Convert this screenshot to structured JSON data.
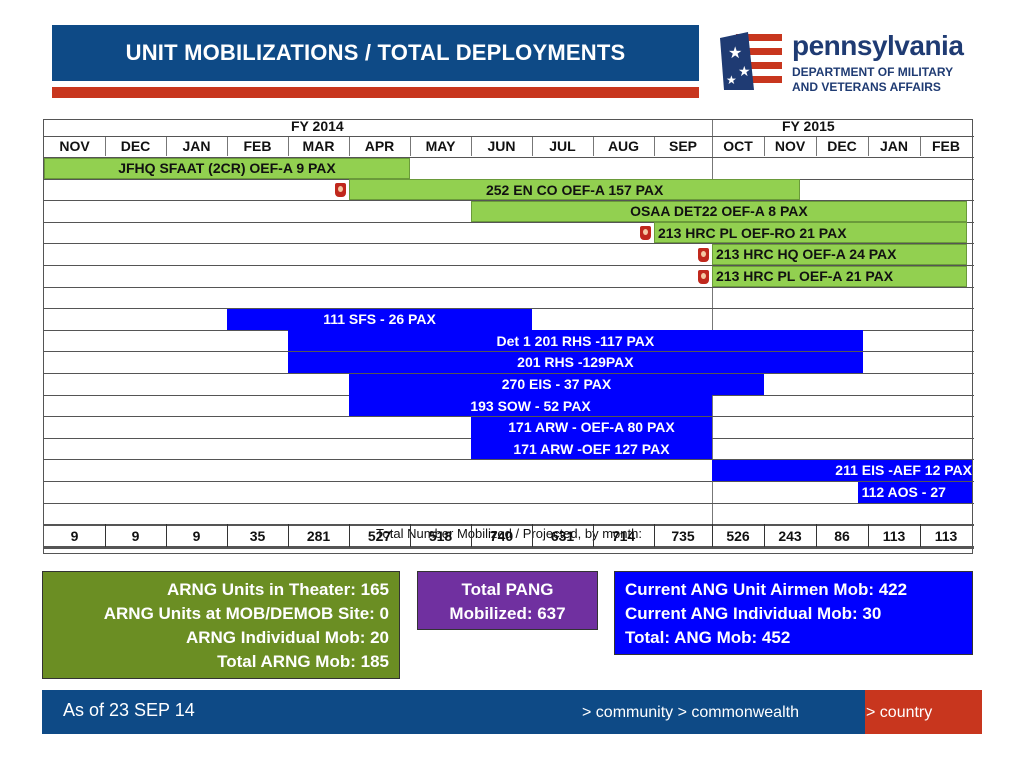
{
  "header": {
    "title": "UNIT MOBILIZATIONS / TOTAL DEPLOYMENTS",
    "logo_name": "pennsylvania",
    "logo_sub1": "DEPARTMENT OF MILITARY",
    "logo_sub2": "AND VETERANS AFFAIRS"
  },
  "gantt": {
    "fy1": "FY 2014",
    "fy2": "FY 2015",
    "months": [
      "NOV",
      "DEC",
      "JAN",
      "FEB",
      "MAR",
      "APR",
      "MAY",
      "JUN",
      "JUL",
      "AUG",
      "SEP",
      "OCT",
      "NOV",
      "DEC",
      "JAN",
      "FEB"
    ],
    "bars": [
      {
        "label": "JFHQ SFAAT (2CR)   OEF-A      9 PAX",
        "start": 0,
        "end": 6,
        "row": 0,
        "color": "green",
        "flag": false
      },
      {
        "label": "252 EN CO   OEF-A  157 PAX",
        "start": 5,
        "end": 12.7,
        "row": 1,
        "color": "green",
        "flag": true
      },
      {
        "label": "OSAA DET22   OEF-A  8 PAX",
        "start": 7,
        "end": 15.9,
        "row": 2,
        "color": "green",
        "flag": false
      },
      {
        "label": "213 HRC PL OEF-RO 21 PAX",
        "start": 10,
        "end": 15.9,
        "row": 3,
        "color": "green",
        "flag": true
      },
      {
        "label": "213 HRC HQ OEF-A 24 PAX",
        "start": 11,
        "end": 15.9,
        "row": 4,
        "color": "green",
        "flag": true
      },
      {
        "label": "213 HRC PL OEF-A 21 PAX",
        "start": 11,
        "end": 15.9,
        "row": 5,
        "color": "green",
        "flag": true
      },
      {
        "label": "111 SFS - 26 PAX",
        "start": 3,
        "end": 8,
        "row": 7,
        "color": "blue",
        "flag": false
      },
      {
        "label": "Det 1 201 RHS -117 PAX",
        "start": 4,
        "end": 13.9,
        "row": 8,
        "color": "blue",
        "flag": false
      },
      {
        "label": "201 RHS -129PAX",
        "start": 4,
        "end": 13.9,
        "row": 9,
        "color": "blue",
        "flag": false
      },
      {
        "label": "270 EIS - 37 PAX",
        "start": 5,
        "end": 12,
        "row": 10,
        "color": "blue",
        "flag": false
      },
      {
        "label": "193 SOW - 52 PAX",
        "start": 5,
        "end": 11,
        "row": 11,
        "color": "blue",
        "flag": false
      },
      {
        "label": "171 ARW - OEF-A 80 PAX",
        "start": 7,
        "end": 11,
        "row": 12,
        "color": "blue",
        "flag": false
      },
      {
        "label": "171 ARW -OEF 127 PAX",
        "start": 7,
        "end": 11,
        "row": 13,
        "color": "blue",
        "flag": false
      },
      {
        "label": "211 EIS -AEF 12 PAX",
        "start": 11,
        "end": 16,
        "row": 14,
        "color": "blue",
        "flag": false
      },
      {
        "label": "112 AOS - 27",
        "start": 13.8,
        "end": 16,
        "row": 15,
        "color": "blue",
        "flag": false
      }
    ],
    "totals_label": "Total Number Mobilized / Projected,  by month:",
    "totals": [
      "9",
      "9",
      "9",
      "35",
      "281",
      "527",
      "518",
      "740",
      "631",
      "714",
      "735",
      "526",
      "243",
      "86",
      "113",
      "113"
    ]
  },
  "arng": {
    "line1": "ARNG Units in Theater: 165",
    "line2": "ARNG Units at MOB/DEMOB Site: 0",
    "line3": "ARNG Individual Mob: 20",
    "line4": "Total ARNG Mob: 185"
  },
  "pang": {
    "line1": "Total PANG",
    "line2": "Mobilized: 637"
  },
  "ang": {
    "line1": "Current ANG Unit Airmen Mob: 422",
    "line2": "Current ANG Individual Mob: 30",
    "line3": "Total: ANG Mob: 452"
  },
  "footer": {
    "as_of": "As of 23 SEP 14",
    "tagline_left": "> community > commonwealth",
    "tagline_right": "> country"
  },
  "colors": {
    "navy": "#0e4a86",
    "red": "#c8361e",
    "green_bar": "#92d050",
    "blue_bar": "#0000ff",
    "arng_box": "#6b8e23",
    "pang_box": "#7030a0",
    "ang_box": "#0000ff"
  }
}
